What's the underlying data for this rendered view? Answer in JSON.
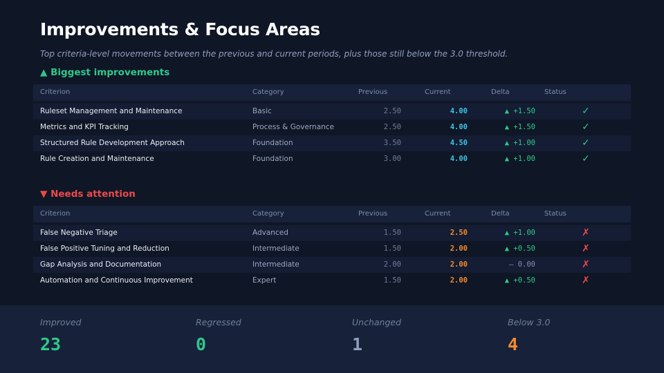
{
  "title": "Improvements & Focus Areas",
  "subtitle": "Top criteria-level movements between the previous and current periods, plus those still below the 3.0 threshold.",
  "colors": {
    "background": "#0f1626",
    "improved": "#2ec98a",
    "attention": "#ec4a4a",
    "current_good": "#3cc4e0",
    "current_warn": "#f38a2e"
  },
  "columns": {
    "criterion": "Criterion",
    "category": "Category",
    "previous": "Previous",
    "current": "Current",
    "delta": "Delta",
    "status": "Status"
  },
  "improvements": {
    "heading": "▲ Biggest improvements",
    "rows": [
      {
        "criterion": "Ruleset Management and Maintenance",
        "category": "Basic",
        "previous": "2.50",
        "current": "4.00",
        "delta": "▲ +1.50",
        "status": "✓"
      },
      {
        "criterion": "Metrics and KPI Tracking",
        "category": "Process & Governance",
        "previous": "2.50",
        "current": "4.00",
        "delta": "▲ +1.50",
        "status": "✓"
      },
      {
        "criterion": "Structured Rule Development Approach",
        "category": "Foundation",
        "previous": "3.50",
        "current": "4.50",
        "delta": "▲ +1.00",
        "status": "✓"
      },
      {
        "criterion": "Rule Creation and Maintenance",
        "category": "Foundation",
        "previous": "3.00",
        "current": "4.00",
        "delta": "▲ +1.00",
        "status": "✓"
      }
    ]
  },
  "attention": {
    "heading": "▼ Needs attention",
    "rows": [
      {
        "criterion": "False Negative Triage",
        "category": "Advanced",
        "previous": "1.50",
        "current": "2.50",
        "delta": "▲ +1.00",
        "status": "✗"
      },
      {
        "criterion": "False Positive Tuning and Reduction",
        "category": "Intermediate",
        "previous": "1.50",
        "current": "2.00",
        "delta": "▲ +0.50",
        "status": "✗"
      },
      {
        "criterion": "Gap Analysis and Documentation",
        "category": "Intermediate",
        "previous": "2.00",
        "current": "2.00",
        "delta": "– 0.00",
        "status": "✗"
      },
      {
        "criterion": "Automation and Continuous Improvement",
        "category": "Expert",
        "previous": "1.50",
        "current": "2.00",
        "delta": "▲ +0.50",
        "status": "✗"
      }
    ]
  },
  "summary": {
    "improved": {
      "label": "Improved",
      "value": "23",
      "color": "#2ec98a"
    },
    "regressed": {
      "label": "Regressed",
      "value": "0",
      "color": "#2ec98a"
    },
    "unchanged": {
      "label": "Unchanged",
      "value": "1",
      "color": "#8fa0bd"
    },
    "below": {
      "label": "Below 3.0",
      "value": "4",
      "color": "#f38a2e"
    }
  }
}
